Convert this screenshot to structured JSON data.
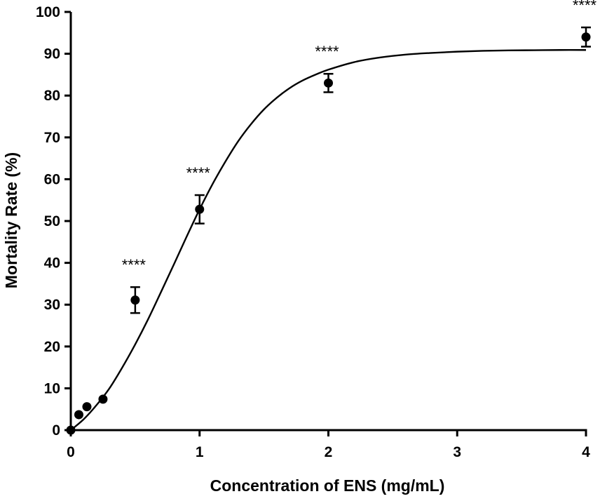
{
  "chart_data": {
    "type": "scatter",
    "xlabel": "Concentration of ENS (mg/mL)",
    "ylabel": "Mortality Rate (%)",
    "xlim": [
      0,
      4
    ],
    "ylim": [
      0,
      100
    ],
    "xticks": [
      "0",
      "1",
      "2",
      "3",
      "4"
    ],
    "yticks": [
      "0",
      "10",
      "20",
      "30",
      "40",
      "50",
      "60",
      "70",
      "80",
      "90",
      "100"
    ],
    "grid": false,
    "points": [
      {
        "x": 0,
        "y": 0,
        "err": 0
      },
      {
        "x": 0.0625,
        "y": 3.7,
        "err": 0
      },
      {
        "x": 0.125,
        "y": 5.6,
        "err": 0
      },
      {
        "x": 0.25,
        "y": 7.4,
        "err": 0
      },
      {
        "x": 0.5,
        "y": 31.1,
        "err": 3.1,
        "annotation": "****"
      },
      {
        "x": 1,
        "y": 52.8,
        "err": 3.4,
        "annotation": "****"
      },
      {
        "x": 2,
        "y": 83.0,
        "err": 2.2,
        "annotation": "****"
      },
      {
        "x": 4,
        "y": 94.0,
        "err": 2.3,
        "annotation": "****"
      }
    ],
    "fit_curve": {
      "type": "sigmoid",
      "x": [
        0,
        0.1,
        0.2,
        0.3,
        0.4,
        0.5,
        0.6,
        0.7,
        0.8,
        0.9,
        1.0,
        1.1,
        1.2,
        1.3,
        1.4,
        1.5,
        1.6,
        1.7,
        1.8,
        1.9,
        2.0,
        2.2,
        2.4,
        2.6,
        2.8,
        3.0,
        3.2,
        3.4,
        3.6,
        3.8,
        4.0
      ],
      "y": [
        0,
        2.6,
        6.0,
        10.0,
        15.0,
        20.5,
        26.5,
        33.0,
        39.6,
        46.3,
        52.8,
        58.8,
        64.2,
        69.1,
        73.2,
        76.7,
        79.5,
        81.8,
        83.6,
        85.0,
        86.2,
        88.0,
        89.1,
        89.8,
        90.2,
        90.5,
        90.7,
        90.8,
        90.85,
        90.9,
        90.9
      ]
    }
  }
}
